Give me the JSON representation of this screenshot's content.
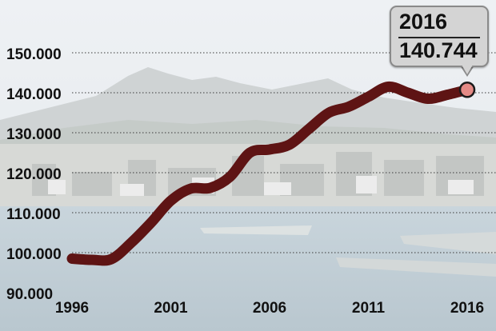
{
  "chart_data": {
    "type": "line",
    "title": "",
    "xlabel": "",
    "ylabel": "",
    "x_ticks": [
      "1996",
      "2001",
      "2006",
      "2011",
      "2016"
    ],
    "y_ticks": [
      "90.000",
      "100.000",
      "110.000",
      "120.000",
      "130.000",
      "140.000",
      "150.000"
    ],
    "xlim": [
      1996,
      2016
    ],
    "ylim": [
      90000,
      155000
    ],
    "grid": "horizontal dotted",
    "series": [
      {
        "color": "#5e1414",
        "x": [
          1996,
          1997,
          1998,
          1999,
          2000,
          2001,
          2002,
          2003,
          2004,
          2005,
          2006,
          2007,
          2008,
          2009,
          2010,
          2011,
          2012,
          2013,
          2014,
          2015,
          2016
        ],
        "y": [
          98500,
          98200,
          98400,
          102500,
          107500,
          113000,
          116000,
          116200,
          119000,
          125000,
          125800,
          127000,
          131000,
          135000,
          136500,
          139000,
          141500,
          140000,
          138500,
          139500,
          140744
        ]
      }
    ],
    "highlight": {
      "year": "2016",
      "value": "140.744",
      "marker_color": "#e48a86"
    }
  }
}
